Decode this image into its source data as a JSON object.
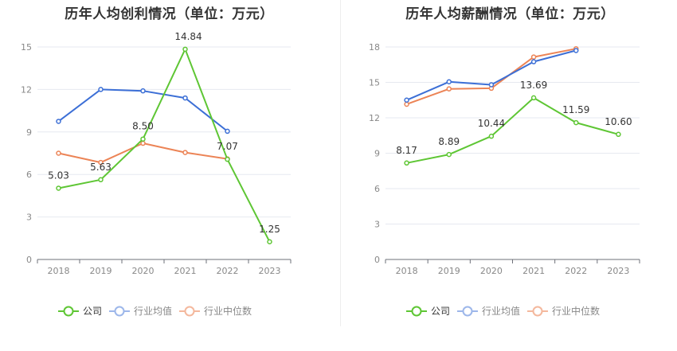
{
  "chart_data": [
    {
      "type": "line",
      "title": "历年人均创利情况（单位：万元）",
      "categories": [
        "2018",
        "2019",
        "2020",
        "2021",
        "2022",
        "2023"
      ],
      "ylim": [
        0,
        15
      ],
      "yticks": [
        0,
        3,
        6,
        9,
        12,
        15
      ],
      "grid": true,
      "legend": "bottom",
      "series": [
        {
          "name": "公司",
          "color": "#5ec634",
          "values": [
            5.03,
            5.63,
            8.5,
            14.84,
            7.07,
            1.25
          ],
          "labels": [
            "5.03",
            "5.63",
            "8.50",
            "14.84",
            "7.07",
            "1.25"
          ]
        },
        {
          "name": "行业均值",
          "color": "#3c6fd6",
          "values": [
            9.75,
            12.0,
            11.9,
            11.4,
            9.05,
            null
          ]
        },
        {
          "name": "行业中位数",
          "color": "#ec8456",
          "values": [
            7.5,
            6.85,
            8.2,
            7.55,
            7.1,
            null
          ]
        }
      ]
    },
    {
      "type": "line",
      "title": "历年人均薪酬情况（单位：万元）",
      "categories": [
        "2018",
        "2019",
        "2020",
        "2021",
        "2022",
        "2023"
      ],
      "ylim": [
        0,
        18
      ],
      "yticks": [
        0,
        3,
        6,
        9,
        12,
        15,
        18
      ],
      "grid": true,
      "legend": "bottom",
      "series": [
        {
          "name": "公司",
          "color": "#5ec634",
          "values": [
            8.17,
            8.89,
            10.44,
            13.69,
            11.59,
            10.6
          ],
          "labels": [
            "8.17",
            "8.89",
            "10.44",
            "13.69",
            "11.59",
            "10.60"
          ]
        },
        {
          "name": "行业均值",
          "color": "#3c6fd6",
          "values": [
            13.5,
            15.05,
            14.8,
            16.75,
            17.7,
            null
          ]
        },
        {
          "name": "行业中位数",
          "color": "#ec8456",
          "values": [
            13.15,
            14.45,
            14.5,
            17.15,
            17.85,
            null
          ]
        }
      ]
    }
  ]
}
